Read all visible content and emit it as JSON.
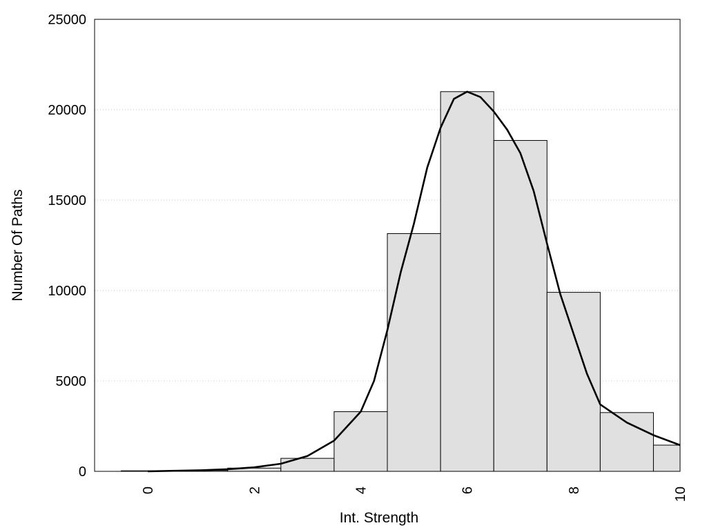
{
  "chart_data": {
    "type": "bar",
    "title": "",
    "xlabel": "Int. Strength",
    "ylabel": "Number Of Paths",
    "xlim": [
      -1,
      10
    ],
    "ylim": [
      0,
      25000
    ],
    "x_ticks": [
      0,
      2,
      4,
      6,
      8,
      10
    ],
    "y_ticks": [
      0,
      5000,
      10000,
      15000,
      20000,
      25000
    ],
    "grid": "horizontal dotted",
    "bar_color": "#e0e0e0",
    "bin_width": 1,
    "bins": [
      {
        "x": 0,
        "value": 30
      },
      {
        "x": 1,
        "value": 50
      },
      {
        "x": 2,
        "value": 180
      },
      {
        "x": 3,
        "value": 720
      },
      {
        "x": 4,
        "value": 3300
      },
      {
        "x": 5,
        "value": 13150
      },
      {
        "x": 6,
        "value": 21000
      },
      {
        "x": 7,
        "value": 18300
      },
      {
        "x": 8,
        "value": 9900
      },
      {
        "x": 9,
        "value": 3250
      },
      {
        "x": 10,
        "value": 1450
      }
    ],
    "density_curve": {
      "x": [
        0,
        0.5,
        1,
        1.5,
        2,
        2.5,
        3,
        3.5,
        4,
        4.25,
        4.5,
        4.75,
        5,
        5.25,
        5.5,
        5.75,
        6,
        6.25,
        6.5,
        6.75,
        7,
        7.25,
        7.5,
        7.75,
        8,
        8.25,
        8.5,
        8.75,
        9,
        9.5,
        10
      ],
      "y": [
        0,
        30,
        60,
        120,
        220,
        420,
        850,
        1700,
        3300,
        5000,
        7800,
        11000,
        13700,
        16800,
        19000,
        20600,
        21000,
        20700,
        19900,
        18900,
        17600,
        15500,
        12600,
        9800,
        7600,
        5400,
        3700,
        3200,
        2700,
        2000,
        1450
      ]
    }
  }
}
